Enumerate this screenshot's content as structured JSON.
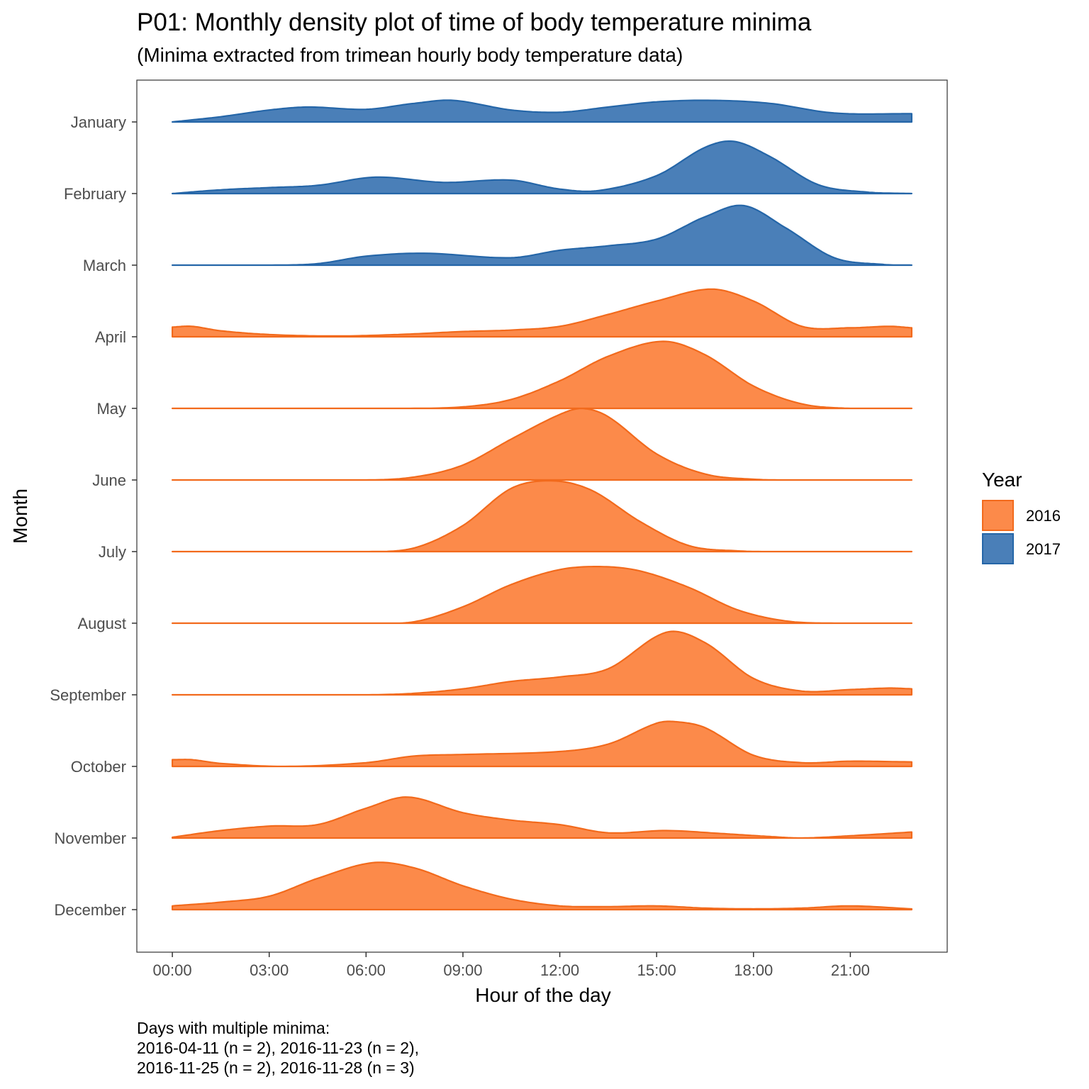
{
  "title": "P01: Monthly density plot of time of body temperature minima",
  "subtitle": "(Minima extracted from trimean hourly body temperature data)",
  "caption": {
    "lines": [
      "Days with multiple minima:",
      "2016-04-11 (n = 2), 2016-11-23 (n = 2),",
      "2016-11-25 (n = 2), 2016-11-28 (n = 3)"
    ]
  },
  "chart_data": {
    "type": "area",
    "subtype": "ridgeline density",
    "xlabel": "Hour of the day",
    "ylabel": "Month",
    "x_unit": "hours",
    "xlim": [
      -1.1,
      24.0
    ],
    "x_ticks": [
      0,
      3,
      6,
      9,
      12,
      15,
      18,
      21
    ],
    "x_tick_labels": [
      "00:00",
      "03:00",
      "06:00",
      "09:00",
      "12:00",
      "15:00",
      "18:00",
      "21:00"
    ],
    "y_categories_top_to_bottom": [
      "January",
      "February",
      "March",
      "April",
      "May",
      "June",
      "July",
      "August",
      "September",
      "October",
      "November",
      "December"
    ],
    "legend": {
      "title": "Year",
      "position": "right",
      "entries": [
        {
          "label": "2016",
          "fill": "#fc8a4a",
          "stroke": "#f26a1c"
        },
        {
          "label": "2017",
          "fill": "#4a7fb8",
          "stroke": "#2566a8"
        }
      ]
    },
    "grid": false,
    "density_scale_note": "relative ridge height, 1.0 = tallest ridge",
    "series": [
      {
        "month": "January",
        "year": "2017",
        "x": [
          0,
          1.5,
          3,
          4.2,
          6,
          7.5,
          8.7,
          10.5,
          12,
          13.5,
          15,
          16.7,
          18.5,
          20.5,
          22.9
        ],
        "y": [
          0.0,
          0.07,
          0.16,
          0.2,
          0.17,
          0.25,
          0.29,
          0.16,
          0.13,
          0.2,
          0.27,
          0.29,
          0.25,
          0.12,
          0.11
        ]
      },
      {
        "month": "February",
        "year": "2017",
        "x": [
          0,
          1.5,
          3,
          4.5,
          6.3,
          8.4,
          10.5,
          12,
          13.2,
          15,
          16.5,
          17.4,
          18.5,
          20,
          21.5,
          22.9
        ],
        "y": [
          0.0,
          0.05,
          0.08,
          0.11,
          0.22,
          0.15,
          0.18,
          0.06,
          0.04,
          0.24,
          0.62,
          0.7,
          0.5,
          0.12,
          0.02,
          0.0
        ]
      },
      {
        "month": "March",
        "year": "2017",
        "x": [
          0,
          3,
          4.5,
          6,
          7.8,
          10.5,
          12,
          13.5,
          15,
          16.5,
          17.7,
          19,
          20.5,
          22,
          22.9
        ],
        "y": [
          0.0,
          0.0,
          0.02,
          0.12,
          0.16,
          0.1,
          0.2,
          0.26,
          0.35,
          0.65,
          0.8,
          0.5,
          0.1,
          0.01,
          0.0
        ]
      },
      {
        "month": "April",
        "year": "2016",
        "x": [
          0,
          0.6,
          1.5,
          3,
          5,
          7,
          9,
          10.5,
          12,
          13.5,
          15,
          16.7,
          18,
          19.5,
          21,
          22.2,
          22.9
        ],
        "y": [
          0.13,
          0.14,
          0.08,
          0.03,
          0.01,
          0.03,
          0.07,
          0.09,
          0.14,
          0.3,
          0.48,
          0.64,
          0.48,
          0.14,
          0.12,
          0.14,
          0.12
        ]
      },
      {
        "month": "May",
        "year": "2016",
        "x": [
          0,
          7,
          9,
          10.5,
          12,
          13.5,
          15.2,
          16.5,
          18,
          19.5,
          21,
          22.9
        ],
        "y": [
          0.0,
          0.0,
          0.02,
          0.12,
          0.37,
          0.7,
          0.9,
          0.72,
          0.3,
          0.06,
          0.0,
          0.0
        ]
      },
      {
        "month": "June",
        "year": "2016",
        "x": [
          0,
          6,
          7.5,
          9,
          10.5,
          12,
          12.7,
          13.5,
          15,
          16.5,
          18,
          19.5,
          22.9
        ],
        "y": [
          0.0,
          0.0,
          0.04,
          0.2,
          0.55,
          0.88,
          0.96,
          0.85,
          0.35,
          0.08,
          0.01,
          0.0,
          0.0
        ]
      },
      {
        "month": "July",
        "year": "2016",
        "x": [
          0,
          6,
          7.5,
          9,
          10.5,
          11.8,
          13,
          14.5,
          16,
          17.5,
          19,
          22.9
        ],
        "y": [
          0.0,
          0.0,
          0.05,
          0.35,
          0.85,
          0.95,
          0.82,
          0.4,
          0.08,
          0.01,
          0.0,
          0.0
        ]
      },
      {
        "month": "August",
        "year": "2016",
        "x": [
          0,
          6,
          7.5,
          9,
          10.5,
          12,
          13.3,
          14.5,
          16,
          17.5,
          19,
          20.5,
          22.9
        ],
        "y": [
          0.0,
          0.0,
          0.02,
          0.22,
          0.52,
          0.72,
          0.76,
          0.7,
          0.48,
          0.18,
          0.03,
          0.0,
          0.0
        ]
      },
      {
        "month": "September",
        "year": "2016",
        "x": [
          0,
          6,
          7.5,
          9,
          10.5,
          12,
          13.5,
          15.3,
          16.5,
          18,
          19.5,
          21,
          22.2,
          22.9
        ],
        "y": [
          0.0,
          0.0,
          0.02,
          0.08,
          0.18,
          0.24,
          0.35,
          0.84,
          0.7,
          0.22,
          0.05,
          0.07,
          0.09,
          0.08
        ]
      },
      {
        "month": "October",
        "year": "2016",
        "x": [
          0,
          0.6,
          1.5,
          3.5,
          6,
          7.5,
          9,
          12,
          13.5,
          15,
          15.6,
          16.5,
          18,
          19.5,
          21,
          22.9
        ],
        "y": [
          0.09,
          0.09,
          0.04,
          0.0,
          0.05,
          0.14,
          0.16,
          0.2,
          0.3,
          0.58,
          0.6,
          0.52,
          0.15,
          0.05,
          0.07,
          0.06
        ]
      },
      {
        "month": "November",
        "year": "2016",
        "x": [
          0,
          1.5,
          3,
          4.5,
          6,
          7.3,
          9,
          10.5,
          12,
          13.5,
          15.3,
          17,
          18.5,
          19.5,
          21,
          22.9
        ],
        "y": [
          0.01,
          0.1,
          0.16,
          0.18,
          0.4,
          0.55,
          0.34,
          0.24,
          0.18,
          0.07,
          0.1,
          0.06,
          0.02,
          0.0,
          0.03,
          0.08
        ]
      },
      {
        "month": "December",
        "year": "2016",
        "x": [
          0,
          1.5,
          3,
          4.5,
          6.2,
          7.5,
          9,
          10.5,
          12,
          13.5,
          15,
          16.5,
          18,
          19.5,
          21,
          22.9
        ],
        "y": [
          0.05,
          0.1,
          0.18,
          0.42,
          0.63,
          0.56,
          0.32,
          0.14,
          0.05,
          0.04,
          0.05,
          0.02,
          0.01,
          0.02,
          0.05,
          0.01
        ]
      }
    ]
  }
}
